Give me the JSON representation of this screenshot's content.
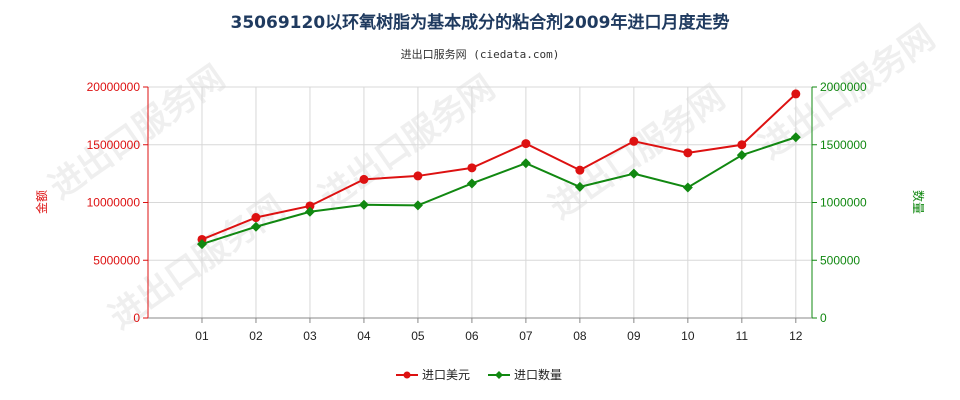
{
  "chart_data": {
    "type": "line",
    "title": "35069120以环氧树脂为基本成分的粘合剂2009年进口月度走势",
    "subtitle": "进出口服务网 (ciedata.com)",
    "watermark": "进出口服务网",
    "categories": [
      "01",
      "02",
      "03",
      "04",
      "05",
      "06",
      "07",
      "08",
      "09",
      "10",
      "11",
      "12"
    ],
    "y_left": {
      "label": "金额",
      "ylim": [
        0,
        20000000
      ],
      "ticks": [
        "0",
        "5000000",
        "10000000",
        "15000000",
        "20000000"
      ],
      "color": "#dd1111"
    },
    "y_right": {
      "label": "数量",
      "ylim": [
        0,
        2000000
      ],
      "ticks": [
        "0",
        "500000",
        "1000000",
        "1500000",
        "2000000"
      ],
      "color": "#118811"
    },
    "series": [
      {
        "name": "进口美元",
        "axis": "left",
        "color": "#dd1111",
        "marker": "circle",
        "values": [
          6800000,
          8700000,
          9700000,
          12000000,
          12300000,
          13000000,
          15100000,
          12800000,
          15300000,
          14300000,
          15000000,
          19400000
        ]
      },
      {
        "name": "进口数量",
        "axis": "right",
        "color": "#118811",
        "marker": "diamond",
        "values": [
          640000,
          790000,
          920000,
          980000,
          975000,
          1165000,
          1340000,
          1135000,
          1250000,
          1130000,
          1410000,
          1565000
        ]
      }
    ],
    "grid": true,
    "legend_position": "bottom-center"
  }
}
